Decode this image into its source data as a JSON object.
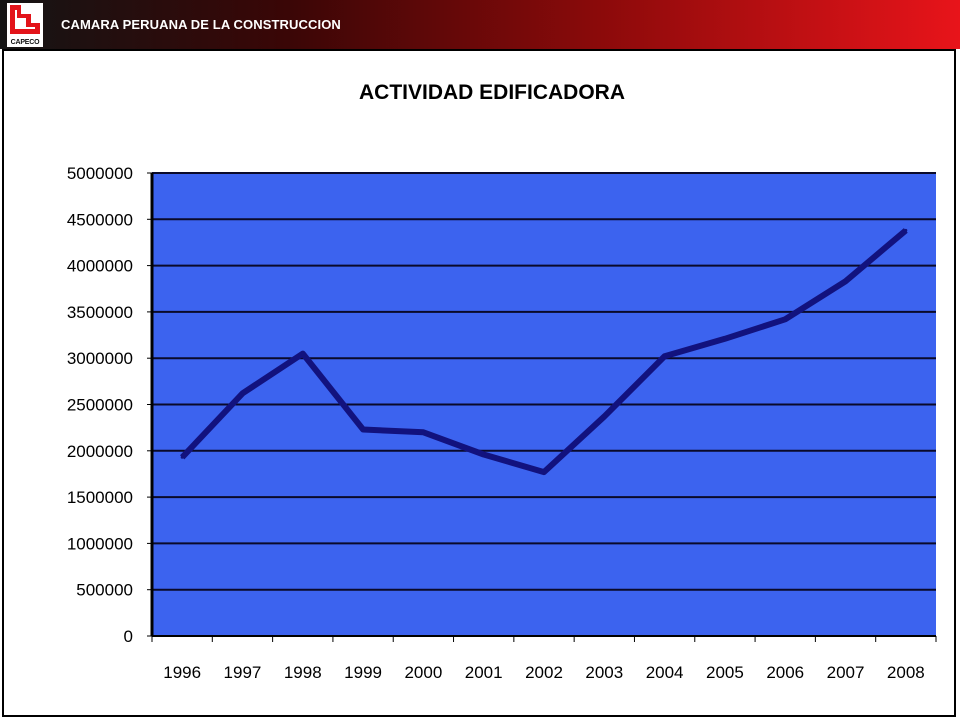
{
  "header": {
    "org_name": "CAMARA PERUANA DE LA CONSTRUCCION",
    "logo_text": "CAPECO"
  },
  "chart_data": {
    "type": "line",
    "title": "ACTIVIDAD EDIFICADORA",
    "xlabel": "",
    "ylabel": "",
    "categories": [
      "1996",
      "1997",
      "1998",
      "1999",
      "2000",
      "2001",
      "2002",
      "2003",
      "2004",
      "2005",
      "2006",
      "2007",
      "2008"
    ],
    "values": [
      1930000,
      2620000,
      3050000,
      2230000,
      2200000,
      1960000,
      1770000,
      2370000,
      3020000,
      3210000,
      3420000,
      3830000,
      4380000
    ],
    "ylim": [
      0,
      5000000
    ],
    "yticks": [
      "0",
      "500000",
      "1000000",
      "1500000",
      "2000000",
      "2500000",
      "3000000",
      "3500000",
      "4000000",
      "4500000",
      "5000000"
    ],
    "grid": true,
    "legend": "none",
    "colors": {
      "plot_background": "#3c63ef",
      "line": "#12127e",
      "gridline": "#0a0a2a"
    }
  }
}
